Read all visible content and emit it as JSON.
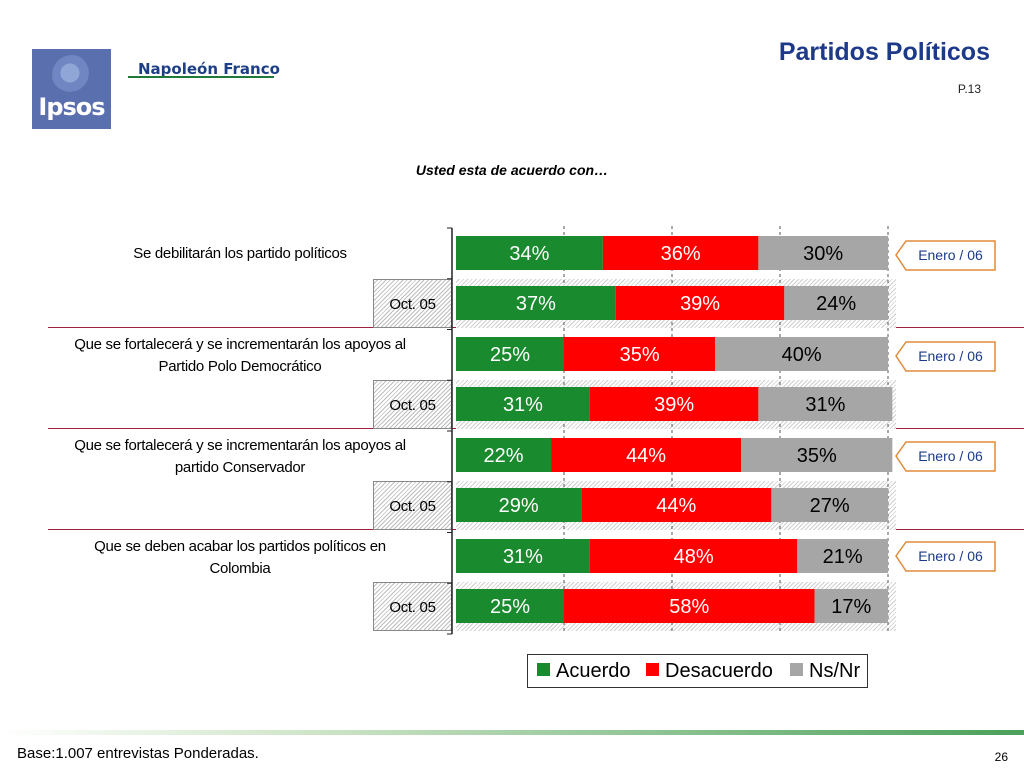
{
  "header": {
    "logo_text": "Ipsos",
    "firm_name": "Napoleón Franco",
    "title": "Partidos Políticos",
    "page_ref": "P.13"
  },
  "question": "Usted esta de acuerdo con…",
  "footer": {
    "base_note": "Base:1.007 entrevistas Ponderadas.",
    "page_number": "26"
  },
  "colors": {
    "acuerdo": "#1a8a2e",
    "desacuerdo": "#ff0000",
    "nsnr": "#a6a6a6",
    "accent": "#1d3a8a"
  },
  "chart_data": {
    "type": "bar",
    "orientation": "horizontal",
    "stacked": true,
    "percent": true,
    "xlim": [
      0,
      100
    ],
    "legend": "bottom-right",
    "grid": "dashed vertical",
    "categories": [
      "Se debilitarán los partido políticos",
      "Oct. 05",
      "Que se fortalecerá y se incrementarán los apoyos al Partido Polo Democrático",
      "Oct. 05",
      "Que se fortalecerá y se incrementarán los apoyos al partido Conservador",
      "Oct. 05",
      "Que se deben acabar los partidos políticos en Colombia",
      "Oct. 05"
    ],
    "series": [
      {
        "name": "Acuerdo",
        "values": [
          34,
          37,
          25,
          31,
          22,
          29,
          31,
          25
        ]
      },
      {
        "name": "Desacuerdo",
        "values": [
          36,
          39,
          35,
          39,
          44,
          44,
          48,
          58
        ]
      },
      {
        "name": "Ns/Nr",
        "values": [
          30,
          24,
          40,
          31,
          35,
          27,
          21,
          17
        ]
      }
    ],
    "data_labels": [
      [
        "34%",
        "36%",
        "30%"
      ],
      [
        "37%",
        "39%",
        "24%"
      ],
      [
        "25%",
        "35%",
        "40%"
      ],
      [
        "31%",
        "39%",
        "31%"
      ],
      [
        "22%",
        "44%",
        "35%"
      ],
      [
        "29%",
        "44%",
        "27%"
      ],
      [
        "31%",
        "48%",
        "21%"
      ],
      [
        "25%",
        "58%",
        "17%"
      ]
    ],
    "callouts": [
      "Enero / 06",
      "Enero / 06",
      "Enero / 06",
      "Enero / 06"
    ]
  },
  "rows": {
    "q1": {
      "line1": "Se debilitarán los partido políticos",
      "line2": ""
    },
    "q2": {
      "line1": "Que se fortalecerá y se incrementarán los apoyos al",
      "line2": "Partido Polo Democrático"
    },
    "q3": {
      "line1": "Que se fortalecerá y se incrementarán los apoyos al",
      "line2": "partido Conservador"
    },
    "q4": {
      "line1": "Que se deben acabar los partidos políticos en",
      "line2": "Colombia"
    },
    "oct_label": "Oct. 05"
  },
  "legend": {
    "acuerdo": "Acuerdo",
    "desacuerdo": "Desacuerdo",
    "nsnr": "Ns/Nr"
  }
}
